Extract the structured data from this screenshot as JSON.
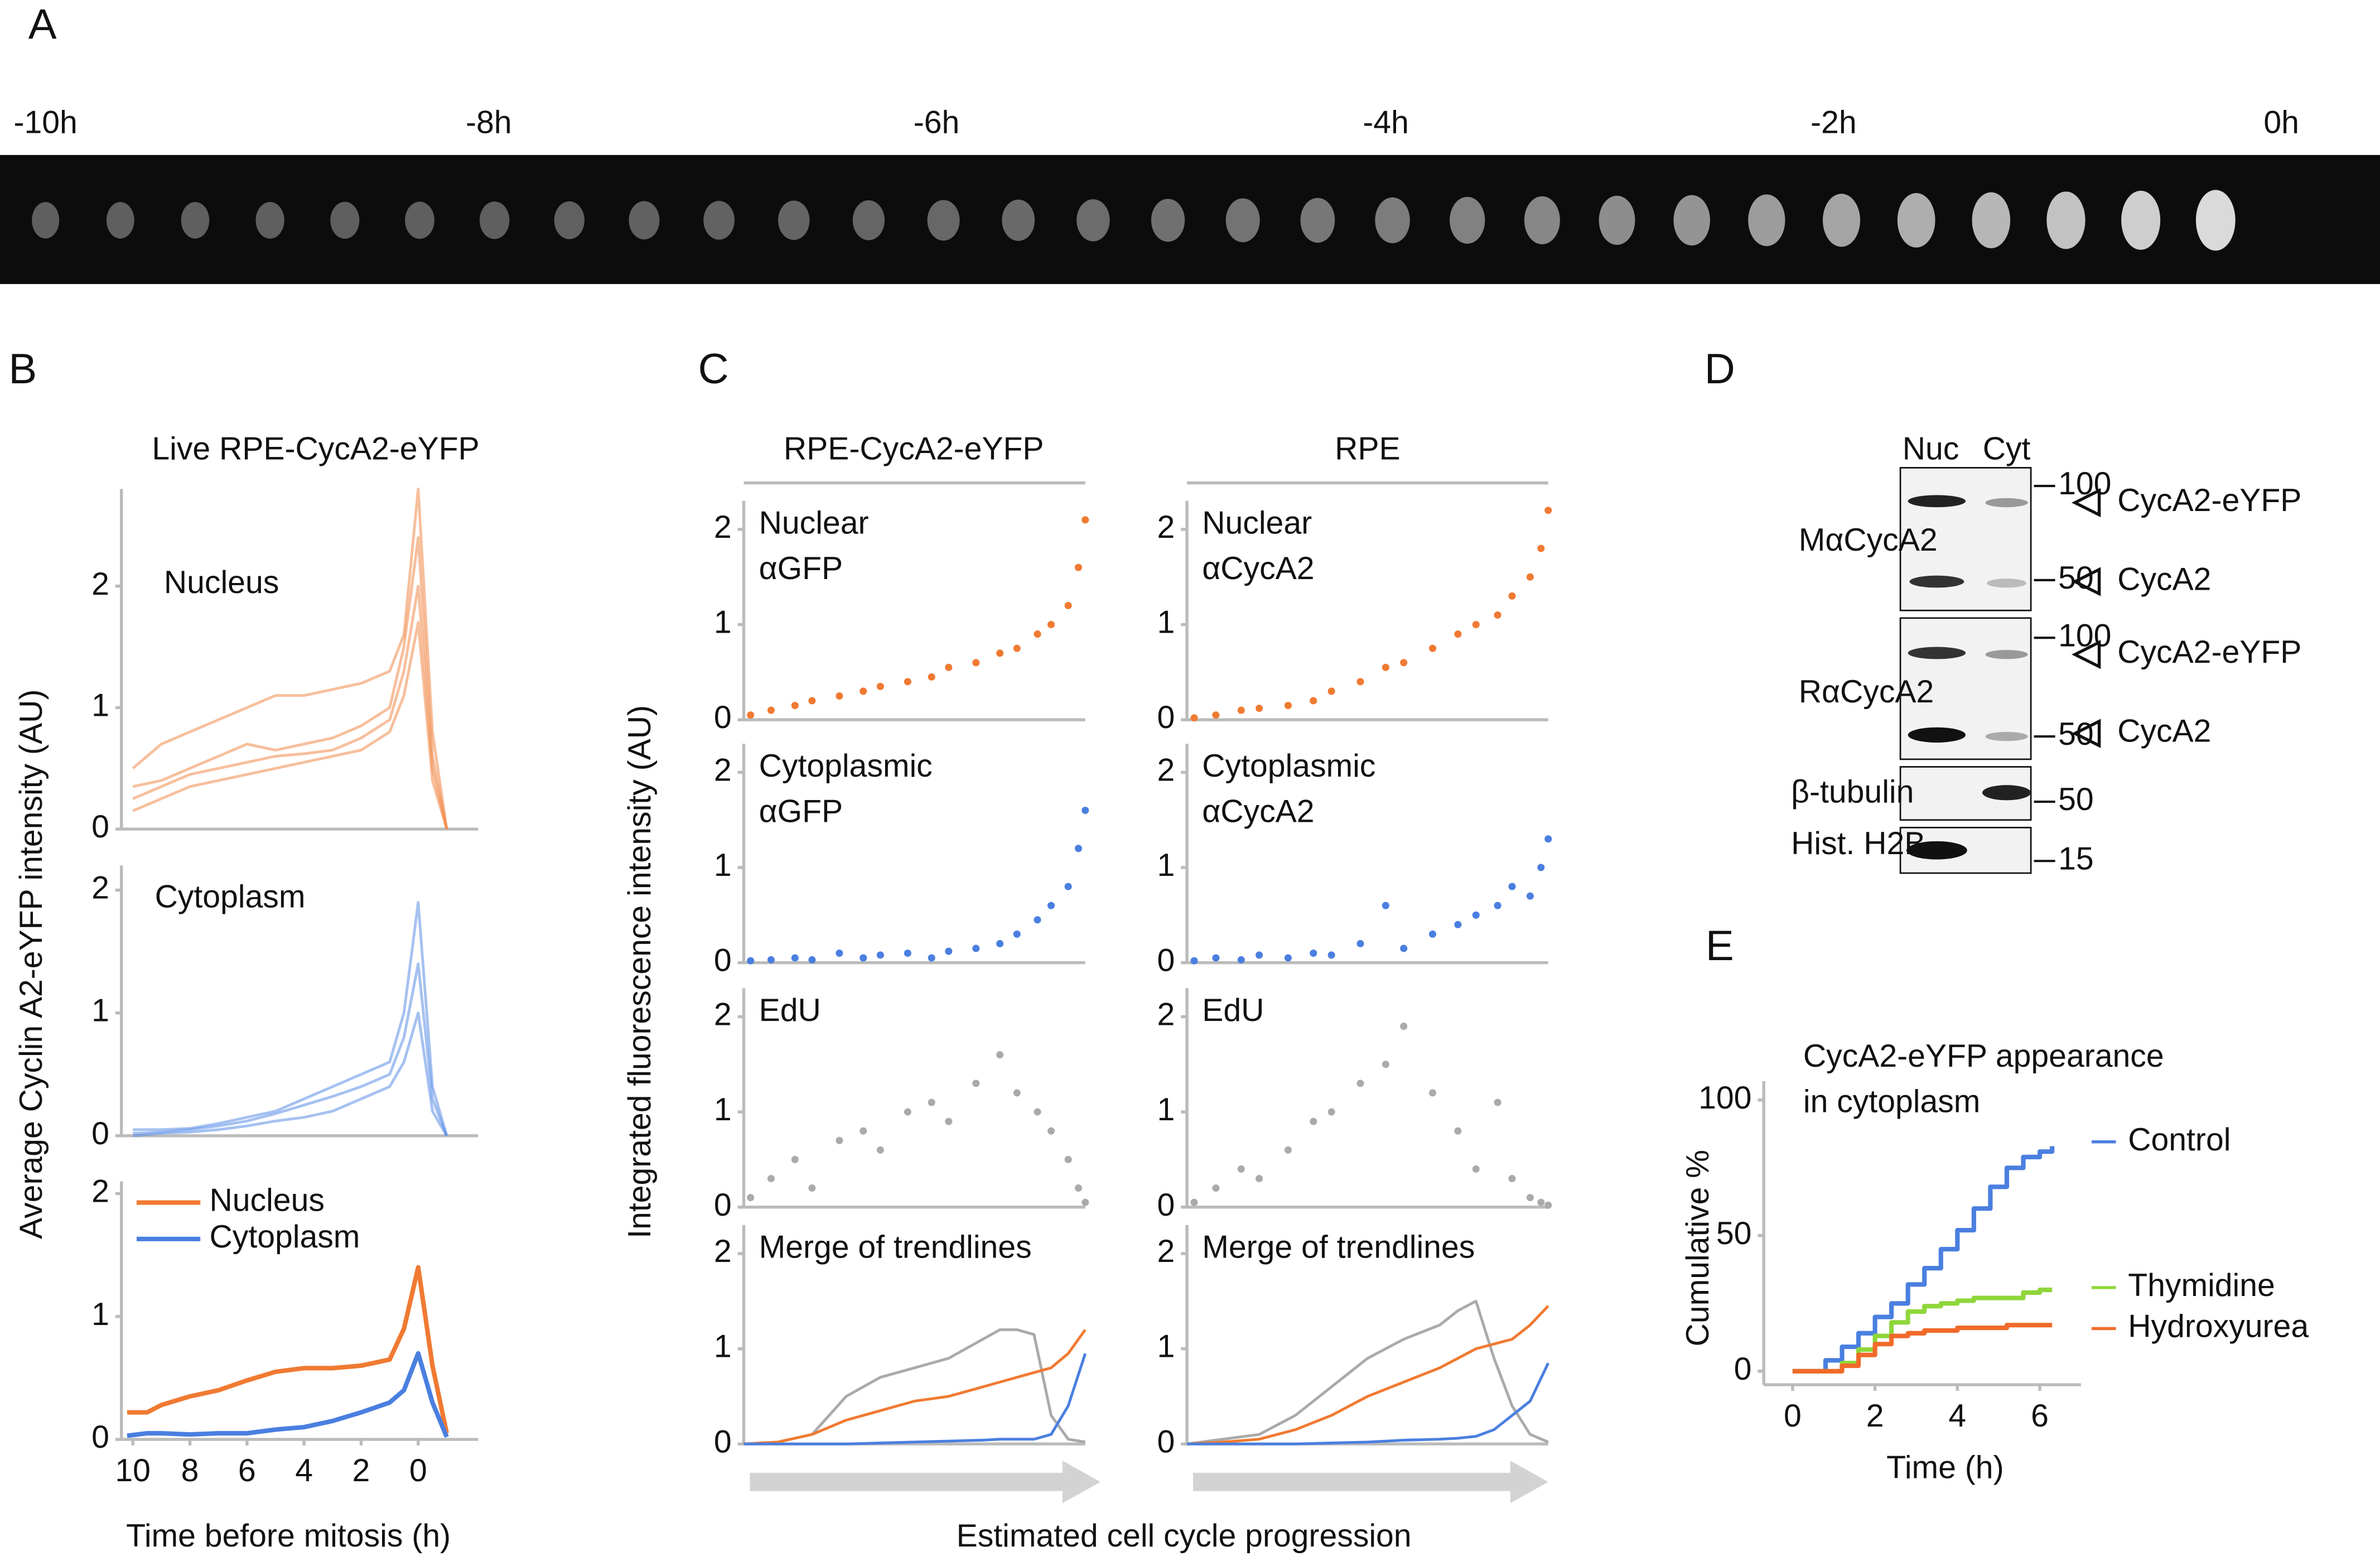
{
  "panel_labels": [
    "A",
    "B",
    "C",
    "D",
    "E"
  ],
  "timelapse": {
    "time_labels": [
      "-10h",
      "-8h",
      "-6h",
      "-4h",
      "-2h",
      "0h"
    ]
  },
  "panel_b": {
    "title": "Live RPE-CycA2-eYFP",
    "ylabel": "Average Cyclin A2-eYFP intensity (AU)"
  },
  "panel_c": {
    "columns": [
      "RPE-CycA2-eYFP",
      "RPE"
    ],
    "ylabel": "Integrated fluorescence intensity (AU)",
    "xlabel": "Estimated cell cycle progression"
  },
  "panel_d": {
    "lanes": [
      "Nuc",
      "Cyt"
    ],
    "antibodies": [
      "MαCycA2",
      "RαCycA2",
      "β-tubulin",
      "Hist. H2B"
    ],
    "markers": [
      "100",
      "50",
      "100",
      "50",
      "50",
      "15"
    ],
    "bands": [
      "CycA2-eYFP",
      "CycA2",
      "CycA2-eYFP",
      "CycA2"
    ]
  },
  "chart_data": [
    {
      "type": "line",
      "title": "Nucleus",
      "x": [
        10,
        9,
        8,
        7,
        6,
        5,
        4,
        3,
        2,
        1,
        0.5,
        0,
        -0.5,
        -1
      ],
      "xlim": [
        10.4,
        -2.1
      ],
      "ylim": [
        0,
        2.8
      ],
      "yticks": [
        0,
        1,
        2
      ],
      "series": [
        {
          "color": "#f08a4b",
          "alpha": 0.55,
          "values": [
            0.25,
            0.35,
            0.45,
            0.5,
            0.55,
            0.6,
            0.62,
            0.65,
            0.75,
            0.9,
            1.3,
            2.0,
            0.5,
            0
          ]
        },
        {
          "color": "#f08a4b",
          "alpha": 0.55,
          "values": [
            0.35,
            0.4,
            0.5,
            0.6,
            0.7,
            0.65,
            0.7,
            0.75,
            0.85,
            1.0,
            1.5,
            2.4,
            0.6,
            0
          ]
        },
        {
          "color": "#f08a4b",
          "alpha": 0.55,
          "values": [
            0.15,
            0.25,
            0.35,
            0.4,
            0.45,
            0.5,
            0.55,
            0.6,
            0.65,
            0.8,
            1.1,
            1.7,
            0.4,
            0
          ]
        },
        {
          "color": "#f08a4b",
          "alpha": 0.55,
          "values": [
            0.5,
            0.7,
            0.8,
            0.9,
            1.0,
            1.1,
            1.1,
            1.15,
            1.2,
            1.3,
            1.6,
            2.8,
            0.8,
            0
          ]
        }
      ]
    },
    {
      "type": "line",
      "title": "Cytoplasm",
      "x": [
        10,
        9,
        8,
        7,
        6,
        5,
        4,
        3,
        2,
        1,
        0.5,
        0,
        -0.5,
        -1
      ],
      "xlim": [
        10.4,
        -2.1
      ],
      "ylim": [
        0,
        2.2
      ],
      "yticks": [
        0,
        1,
        2
      ],
      "series": [
        {
          "color": "#5b8ee6",
          "alpha": 0.55,
          "values": [
            0.02,
            0.03,
            0.05,
            0.08,
            0.12,
            0.18,
            0.25,
            0.32,
            0.4,
            0.5,
            0.8,
            1.4,
            0.3,
            0
          ]
        },
        {
          "color": "#5b8ee6",
          "alpha": 0.55,
          "values": [
            0.05,
            0.05,
            0.06,
            0.1,
            0.15,
            0.2,
            0.3,
            0.4,
            0.5,
            0.6,
            1.0,
            1.9,
            0.4,
            0
          ]
        },
        {
          "color": "#5b8ee6",
          "alpha": 0.55,
          "values": [
            0.0,
            0.02,
            0.03,
            0.05,
            0.08,
            0.12,
            0.15,
            0.2,
            0.3,
            0.4,
            0.6,
            1.0,
            0.2,
            0
          ]
        }
      ]
    },
    {
      "type": "line",
      "legend": "upper left",
      "xlabel": "Time before mitosis (h)",
      "x": [
        10.2,
        9.5,
        9,
        8,
        7,
        6,
        5,
        4,
        3,
        2,
        1,
        0.5,
        0,
        -0.5,
        -1
      ],
      "xlim": [
        10.4,
        -2.1
      ],
      "ylim": [
        0,
        2.1
      ],
      "yticks": [
        0,
        1,
        2
      ],
      "xticks": [
        10,
        8,
        6,
        4,
        2,
        0
      ],
      "series": [
        {
          "name": "Nucleus",
          "color": "#f07a32",
          "values": [
            0.22,
            0.22,
            0.28,
            0.35,
            0.4,
            0.48,
            0.55,
            0.58,
            0.58,
            0.6,
            0.65,
            0.9,
            1.4,
            0.6,
            0.05
          ]
        },
        {
          "name": "Cytoplasm",
          "color": "#4a7fe0",
          "values": [
            0.03,
            0.05,
            0.05,
            0.04,
            0.05,
            0.05,
            0.08,
            0.1,
            0.15,
            0.22,
            0.3,
            0.4,
            0.7,
            0.3,
            0.02
          ]
        }
      ]
    },
    {
      "type": "scatter",
      "title_lines": [
        "Nuclear",
        "αGFP"
      ],
      "color": "#f07a32",
      "xlim": [
        0,
        1
      ],
      "ylim": [
        0,
        2.3
      ],
      "yticks": [
        0,
        1,
        2
      ],
      "x": [
        0.02,
        0.08,
        0.15,
        0.2,
        0.28,
        0.35,
        0.4,
        0.48,
        0.55,
        0.6,
        0.68,
        0.75,
        0.8,
        0.86,
        0.9,
        0.95,
        0.98,
        1.0
      ],
      "values": [
        0.05,
        0.1,
        0.15,
        0.2,
        0.25,
        0.3,
        0.35,
        0.4,
        0.45,
        0.55,
        0.6,
        0.7,
        0.75,
        0.9,
        1.0,
        1.2,
        1.6,
        2.1
      ]
    },
    {
      "type": "scatter",
      "title_lines": [
        "Cytoplasmic",
        "αGFP"
      ],
      "color": "#4a7fe0",
      "xlim": [
        0,
        1
      ],
      "ylim": [
        0,
        2.3
      ],
      "yticks": [
        0,
        1,
        2
      ],
      "x": [
        0.02,
        0.08,
        0.15,
        0.2,
        0.28,
        0.35,
        0.4,
        0.48,
        0.55,
        0.6,
        0.68,
        0.75,
        0.8,
        0.86,
        0.9,
        0.95,
        0.98,
        1.0
      ],
      "values": [
        0.02,
        0.03,
        0.05,
        0.03,
        0.1,
        0.05,
        0.08,
        0.1,
        0.05,
        0.12,
        0.15,
        0.2,
        0.3,
        0.45,
        0.6,
        0.8,
        1.2,
        1.6
      ]
    },
    {
      "type": "scatter",
      "title_lines": [
        "EdU"
      ],
      "color": "#aaaaaa",
      "xlim": [
        0,
        1
      ],
      "ylim": [
        0,
        2.3
      ],
      "yticks": [
        0,
        1,
        2
      ],
      "x": [
        0.02,
        0.08,
        0.15,
        0.2,
        0.28,
        0.35,
        0.4,
        0.48,
        0.55,
        0.6,
        0.68,
        0.75,
        0.8,
        0.86,
        0.9,
        0.95,
        0.98,
        1.0
      ],
      "values": [
        0.1,
        0.3,
        0.5,
        0.2,
        0.7,
        0.8,
        0.6,
        1.0,
        1.1,
        0.9,
        1.3,
        1.6,
        1.2,
        1.0,
        0.8,
        0.5,
        0.2,
        0.05
      ]
    },
    {
      "type": "line",
      "title_lines": [
        "Merge of trendlines"
      ],
      "xlim": [
        0,
        1
      ],
      "ylim": [
        0,
        2.3
      ],
      "yticks": [
        0,
        1,
        2
      ],
      "x": [
        0,
        0.1,
        0.2,
        0.3,
        0.4,
        0.5,
        0.6,
        0.7,
        0.75,
        0.8,
        0.85,
        0.9,
        0.95,
        1.0
      ],
      "series": [
        {
          "color": "#aaaaaa",
          "values": [
            0,
            0.02,
            0.1,
            0.5,
            0.7,
            0.8,
            0.9,
            1.1,
            1.2,
            1.2,
            1.15,
            0.3,
            0.05,
            0.02
          ]
        },
        {
          "color": "#f07a32",
          "values": [
            0,
            0.02,
            0.1,
            0.25,
            0.35,
            0.45,
            0.5,
            0.6,
            0.65,
            0.7,
            0.75,
            0.8,
            0.95,
            1.2
          ]
        },
        {
          "color": "#4a7fe0",
          "values": [
            0,
            0,
            0,
            0,
            0.01,
            0.02,
            0.03,
            0.04,
            0.05,
            0.05,
            0.05,
            0.1,
            0.4,
            0.95
          ]
        }
      ]
    },
    {
      "type": "scatter",
      "title_lines": [
        "Nuclear",
        "αCycA2"
      ],
      "color": "#f07a32",
      "xlim": [
        0,
        1
      ],
      "ylim": [
        0,
        2.3
      ],
      "yticks": [
        0,
        1,
        2
      ],
      "x": [
        0.02,
        0.08,
        0.15,
        0.2,
        0.28,
        0.35,
        0.4,
        0.48,
        0.55,
        0.6,
        0.68,
        0.75,
        0.8,
        0.86,
        0.9,
        0.95,
        0.98,
        1.0
      ],
      "values": [
        0.02,
        0.05,
        0.1,
        0.12,
        0.15,
        0.2,
        0.3,
        0.4,
        0.55,
        0.6,
        0.75,
        0.9,
        1.0,
        1.1,
        1.3,
        1.5,
        1.8,
        2.2
      ]
    },
    {
      "type": "scatter",
      "title_lines": [
        "Cytoplasmic",
        "αCycA2"
      ],
      "color": "#4a7fe0",
      "xlim": [
        0,
        1
      ],
      "ylim": [
        0,
        2.3
      ],
      "yticks": [
        0,
        1,
        2
      ],
      "x": [
        0.02,
        0.08,
        0.15,
        0.2,
        0.28,
        0.35,
        0.4,
        0.48,
        0.55,
        0.6,
        0.68,
        0.75,
        0.8,
        0.86,
        0.9,
        0.95,
        0.98,
        1.0
      ],
      "values": [
        0.02,
        0.05,
        0.03,
        0.08,
        0.05,
        0.1,
        0.08,
        0.2,
        0.6,
        0.15,
        0.3,
        0.4,
        0.5,
        0.6,
        0.8,
        0.7,
        1.0,
        1.3
      ]
    },
    {
      "type": "scatter",
      "title_lines": [
        "EdU"
      ],
      "color": "#aaaaaa",
      "xlim": [
        0,
        1
      ],
      "ylim": [
        0,
        2.3
      ],
      "yticks": [
        0,
        1,
        2
      ],
      "x": [
        0.02,
        0.08,
        0.15,
        0.2,
        0.28,
        0.35,
        0.4,
        0.48,
        0.55,
        0.6,
        0.68,
        0.75,
        0.8,
        0.86,
        0.9,
        0.95,
        0.98,
        1.0
      ],
      "values": [
        0.05,
        0.2,
        0.4,
        0.3,
        0.6,
        0.9,
        1.0,
        1.3,
        1.5,
        1.9,
        1.2,
        0.8,
        0.4,
        1.1,
        0.3,
        0.1,
        0.05,
        0.02
      ]
    },
    {
      "type": "line",
      "title_lines": [
        "Merge of trendlines"
      ],
      "xlim": [
        0,
        1
      ],
      "ylim": [
        0,
        2.3
      ],
      "yticks": [
        0,
        1,
        2
      ],
      "x": [
        0,
        0.1,
        0.2,
        0.3,
        0.4,
        0.5,
        0.6,
        0.7,
        0.75,
        0.8,
        0.85,
        0.9,
        0.95,
        1.0
      ],
      "series": [
        {
          "color": "#aaaaaa",
          "values": [
            0,
            0.05,
            0.1,
            0.3,
            0.6,
            0.9,
            1.1,
            1.25,
            1.4,
            1.5,
            0.9,
            0.4,
            0.1,
            0.02
          ]
        },
        {
          "color": "#f07a32",
          "values": [
            0,
            0.02,
            0.05,
            0.15,
            0.3,
            0.5,
            0.65,
            0.8,
            0.9,
            1.0,
            1.05,
            1.1,
            1.25,
            1.45
          ]
        },
        {
          "color": "#4a7fe0",
          "values": [
            0,
            0,
            0,
            0,
            0.01,
            0.02,
            0.04,
            0.05,
            0.06,
            0.08,
            0.15,
            0.3,
            0.45,
            0.85
          ]
        }
      ]
    },
    {
      "type": "step",
      "title_lines": [
        "CycA2-eYFP appearance",
        "in cytoplasm"
      ],
      "xlabel": "Time (h)",
      "ylabel": "Cumulative %",
      "legend": "right",
      "x": [
        0,
        0.6,
        0.8,
        1.2,
        1.6,
        2.0,
        2.4,
        2.8,
        3.2,
        3.6,
        4.0,
        4.4,
        4.8,
        5.2,
        5.6,
        6.0,
        6.3
      ],
      "xlim": [
        -0.7,
        7
      ],
      "ylim": [
        -5,
        107
      ],
      "xticks": [
        0,
        2,
        4,
        6
      ],
      "yticks": [
        0,
        50,
        100
      ],
      "series": [
        {
          "name": "Control",
          "color": "#4a7fe0",
          "values": [
            0,
            0,
            4,
            9,
            14,
            20,
            25,
            32,
            38,
            45,
            52,
            60,
            68,
            75,
            79,
            81,
            83
          ]
        },
        {
          "name": "Thymidine",
          "color": "#8fd63a",
          "values": [
            0,
            0,
            0,
            3,
            8,
            13,
            18,
            22,
            24,
            25,
            26,
            27,
            27,
            27,
            29,
            30,
            30
          ]
        },
        {
          "name": "Hydroxyurea",
          "color": "#f06a2a",
          "values": [
            0,
            0,
            0,
            2,
            6,
            10,
            13,
            14,
            15,
            15,
            16,
            16,
            16,
            17,
            17,
            17,
            17
          ]
        }
      ]
    }
  ]
}
